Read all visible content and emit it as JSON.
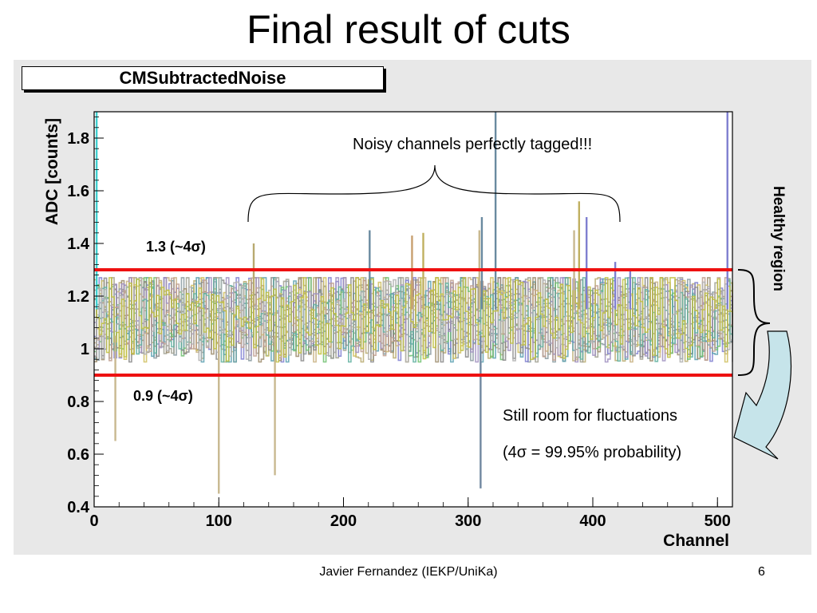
{
  "slide": {
    "title": "Final result of cuts",
    "author": "Javier Fernandez (IEKP/UniKa)",
    "page_number": "6"
  },
  "annotations": {
    "noisy": "Noisy channels perfectly tagged!!!",
    "upper_cut": "1.3 (~4σ)",
    "lower_cut": "0.9 (~4σ)",
    "healthy": "Healthy region",
    "room_line1": "Still room for fluctuations",
    "room_line2": "(4σ = 99.95% probability)"
  },
  "colors": {
    "cut_line": "#ee1111",
    "canvas_bg": "#e8e8e8",
    "arrow_fill": "#c6e4ea",
    "edge_spike": "#40d0d0"
  },
  "chart_data": {
    "type": "line",
    "title": "CMSubtractedNoise",
    "xlabel": "Channel",
    "ylabel": "ADC [counts]",
    "xlim": [
      0,
      512
    ],
    "ylim": [
      0.4,
      1.9
    ],
    "x_ticks": [
      "0",
      "100",
      "200",
      "300",
      "400",
      "500"
    ],
    "y_ticks": [
      "0.4",
      "0.6",
      "0.8",
      "1",
      "1.2",
      "1.4",
      "1.6",
      "1.8"
    ],
    "cut_lines": [
      1.3,
      0.9
    ],
    "band": {
      "mean": 1.12,
      "min": 0.95,
      "max": 1.27
    },
    "spikes": [
      {
        "x": 2,
        "y": 1.9
      },
      {
        "x": 17,
        "y": 0.65
      },
      {
        "x": 100,
        "y": 0.45
      },
      {
        "x": 128,
        "y": 1.4
      },
      {
        "x": 145,
        "y": 0.52
      },
      {
        "x": 221,
        "y": 1.45
      },
      {
        "x": 255,
        "y": 1.43
      },
      {
        "x": 264,
        "y": 1.44
      },
      {
        "x": 309,
        "y": 1.45
      },
      {
        "x": 310,
        "y": 0.47
      },
      {
        "x": 311,
        "y": 1.5
      },
      {
        "x": 322,
        "y": 1.9
      },
      {
        "x": 385,
        "y": 1.45
      },
      {
        "x": 389,
        "y": 1.56
      },
      {
        "x": 395,
        "y": 1.5
      },
      {
        "x": 418,
        "y": 1.33
      },
      {
        "x": 430,
        "y": 1.3
      },
      {
        "x": 508,
        "y": 1.9
      }
    ]
  }
}
